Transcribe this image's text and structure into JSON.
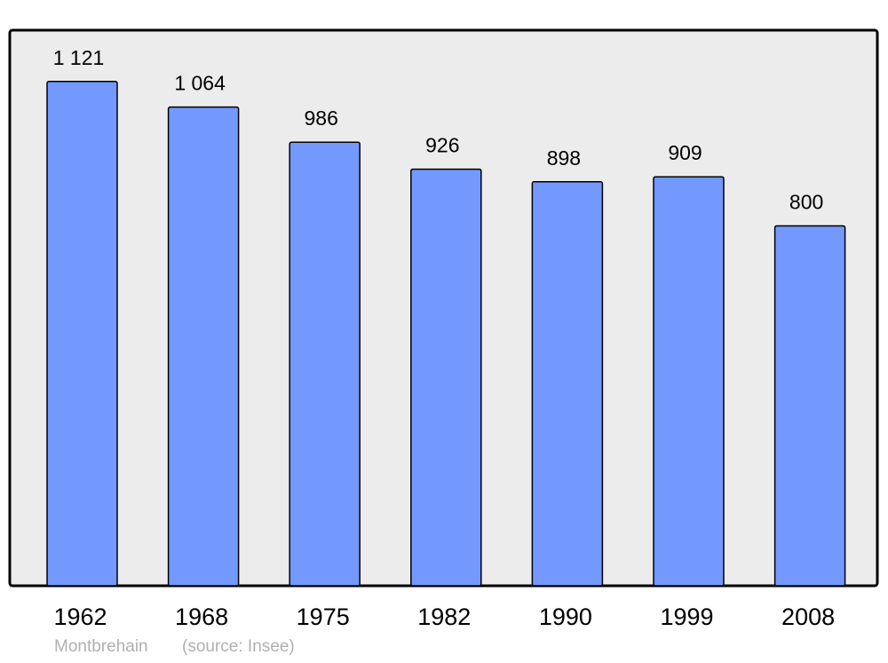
{
  "chart_data": {
    "type": "bar",
    "categories": [
      "1962",
      "1968",
      "1975",
      "1982",
      "1990",
      "1999",
      "2008"
    ],
    "values": [
      1121,
      1064,
      986,
      926,
      898,
      909,
      800
    ],
    "data_labels": [
      "1 121",
      "1 064",
      "986",
      "926",
      "898",
      "909",
      "800"
    ],
    "title": "",
    "xlabel": "",
    "ylabel": "",
    "ylim": [
      0,
      1233
    ],
    "grid": false,
    "legend": "none",
    "colors": {
      "bar": "#7399ff",
      "background": "#ececec",
      "border": "#000000",
      "footer_text": "#b0b0b0"
    }
  },
  "footer": {
    "place": "Montbrehain",
    "source": "(source: Insee)"
  }
}
